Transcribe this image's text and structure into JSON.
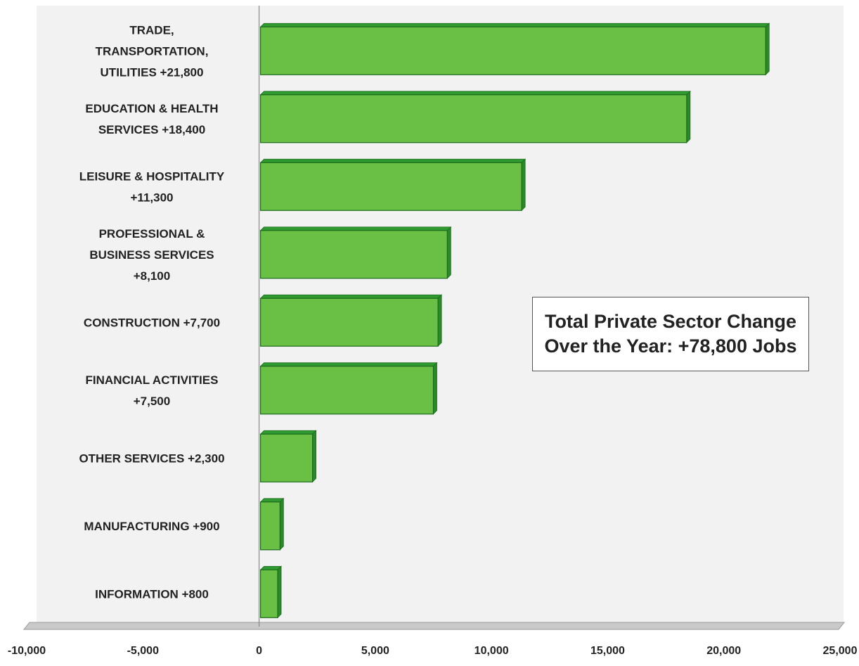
{
  "chart_data": {
    "type": "bar",
    "orientation": "horizontal",
    "categories": [
      [
        "TRADE,",
        "TRANSPORTATION,",
        "UTILITIES +21,800"
      ],
      [
        "EDUCATION & HEALTH",
        "SERVICES  +18,400"
      ],
      [
        "LEISURE & HOSPITALITY",
        "+11,300"
      ],
      [
        "PROFESSIONAL &",
        "BUSINESS SERVICES",
        "+8,100"
      ],
      [
        "CONSTRUCTION +7,700"
      ],
      [
        "FINANCIAL ACTIVITIES",
        "+7,500"
      ],
      [
        "OTHER SERVICES +2,300"
      ],
      [
        "MANUFACTURING +900"
      ],
      [
        "INFORMATION +800"
      ]
    ],
    "values": [
      21800,
      18400,
      11300,
      8100,
      7700,
      7500,
      2300,
      900,
      800
    ],
    "xlim": [
      -10000,
      25000
    ],
    "xticks": [
      -10000,
      -5000,
      0,
      5000,
      10000,
      15000,
      20000,
      25000
    ],
    "xtick_labels": [
      "-10,000",
      "-5,000",
      "0",
      "5,000",
      "10,000",
      "15,000",
      "20,000",
      "25,000"
    ],
    "annotation": [
      "Total Private Sector Change",
      "Over the Year: +78,800 Jobs"
    ],
    "bar_color": "#6abf45",
    "bar_edge_color": "#1c6b1c",
    "plot_background": "#f2f2f2",
    "grid": false,
    "legend": "none"
  }
}
